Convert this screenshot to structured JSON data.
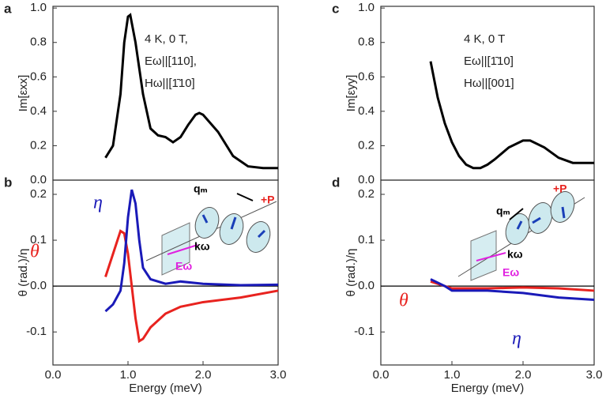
{
  "chart_data": [
    {
      "type": "line",
      "panel_label": "a",
      "ylabel": "Im[εxx]",
      "annotation": [
        "4 K, 0 T,",
        "Eω||[110],",
        "Hω||[1̄10]"
      ],
      "xlim": [
        0,
        3.0
      ],
      "ylim": [
        0,
        1.01
      ],
      "yticks": [
        {
          "value": 0,
          "label": "0.0"
        },
        0.2,
        0.4,
        0.6,
        0.8,
        {
          "value": 1.0,
          "label": "1.0"
        }
      ],
      "x": [
        0.7,
        0.8,
        0.9,
        0.95,
        1.0,
        1.03,
        1.1,
        1.2,
        1.3,
        1.4,
        1.5,
        1.6,
        1.7,
        1.8,
        1.9,
        1.95,
        2.0,
        2.2,
        2.4,
        2.6,
        2.8,
        3.0
      ],
      "series": [
        {
          "color": "#000000",
          "values": [
            0.13,
            0.2,
            0.5,
            0.8,
            0.95,
            0.96,
            0.8,
            0.5,
            0.3,
            0.26,
            0.25,
            0.22,
            0.25,
            0.32,
            0.38,
            0.39,
            0.38,
            0.28,
            0.14,
            0.08,
            0.07,
            0.07
          ]
        }
      ]
    },
    {
      "type": "line",
      "panel_label": "b",
      "ylabel": "θ (rad.)/η",
      "xlabel": "Energy (meV)",
      "inset_labels": [
        "qₘ",
        "+P",
        "kω",
        "Eω"
      ],
      "xlim": [
        0,
        3.0
      ],
      "ylim": [
        -0.172,
        0.231
      ],
      "xticks": [
        {
          "value": 0,
          "label": "0.0"
        },
        {
          "value": 1.0,
          "label": "1.0"
        },
        {
          "value": 2.0,
          "label": "2.0"
        },
        {
          "value": 3.0,
          "label": "3.0"
        }
      ],
      "yticks": [
        -0.1,
        {
          "value": 0,
          "label": "0.0"
        },
        0.1,
        0.2
      ],
      "x": [
        0.7,
        0.8,
        0.9,
        0.95,
        1.0,
        1.05,
        1.1,
        1.15,
        1.2,
        1.3,
        1.5,
        1.7,
        2.0,
        2.5,
        3.0
      ],
      "series": [
        {
          "name": "θ",
          "color": "#e8231f",
          "values": [
            0.02,
            0.07,
            0.12,
            0.115,
            0.07,
            0.0,
            -0.07,
            -0.12,
            -0.115,
            -0.09,
            -0.06,
            -0.045,
            -0.035,
            -0.025,
            -0.01
          ]
        },
        {
          "name": "η",
          "color": "#1a1ab8",
          "values": [
            -0.055,
            -0.04,
            -0.01,
            0.05,
            0.15,
            0.21,
            0.18,
            0.1,
            0.04,
            0.015,
            0.005,
            0.01,
            0.005,
            0.002,
            0.003
          ]
        }
      ]
    },
    {
      "type": "line",
      "panel_label": "c",
      "ylabel": "Im[εyy]",
      "annotation": [
        "4 K, 0 T",
        "Eω||[1̄10]",
        "Hω||[001]"
      ],
      "xlim": [
        0,
        3.0
      ],
      "ylim": [
        0,
        1.01
      ],
      "yticks": [
        {
          "value": 0,
          "label": "0.0"
        },
        0.2,
        0.4,
        0.6,
        0.8,
        {
          "value": 1.0,
          "label": "1.0"
        }
      ],
      "x": [
        0.7,
        0.8,
        0.9,
        1.0,
        1.1,
        1.2,
        1.3,
        1.4,
        1.5,
        1.6,
        1.8,
        2.0,
        2.1,
        2.3,
        2.5,
        2.7,
        3.0
      ],
      "series": [
        {
          "color": "#000000",
          "values": [
            0.69,
            0.48,
            0.33,
            0.22,
            0.14,
            0.09,
            0.07,
            0.07,
            0.09,
            0.12,
            0.19,
            0.23,
            0.23,
            0.19,
            0.13,
            0.1,
            0.1
          ]
        }
      ]
    },
    {
      "type": "line",
      "panel_label": "d",
      "ylabel": "θ (rad.)/η",
      "xlabel": "Energy (meV)",
      "inset_labels": [
        "qₘ",
        "+P",
        "kω",
        "Eω"
      ],
      "xlim": [
        0,
        3.0
      ],
      "ylim": [
        -0.172,
        0.231
      ],
      "xticks": [
        {
          "value": 0,
          "label": "0.0"
        },
        {
          "value": 1.0,
          "label": "1.0"
        },
        {
          "value": 2.0,
          "label": "2.0"
        },
        {
          "value": 3.0,
          "label": "3.0"
        }
      ],
      "yticks": [
        -0.1,
        {
          "value": 0,
          "label": "0.0"
        },
        0.1,
        0.2
      ],
      "x": [
        0.7,
        0.9,
        1.0,
        1.5,
        2.0,
        2.5,
        3.0
      ],
      "series": [
        {
          "name": "θ",
          "color": "#e8231f",
          "values": [
            0.01,
            0.0,
            -0.005,
            -0.005,
            -0.003,
            -0.005,
            -0.01
          ]
        },
        {
          "name": "η",
          "color": "#1a1ab8",
          "values": [
            0.015,
            0.0,
            -0.01,
            -0.01,
            -0.015,
            -0.025,
            -0.03
          ]
        }
      ]
    }
  ]
}
